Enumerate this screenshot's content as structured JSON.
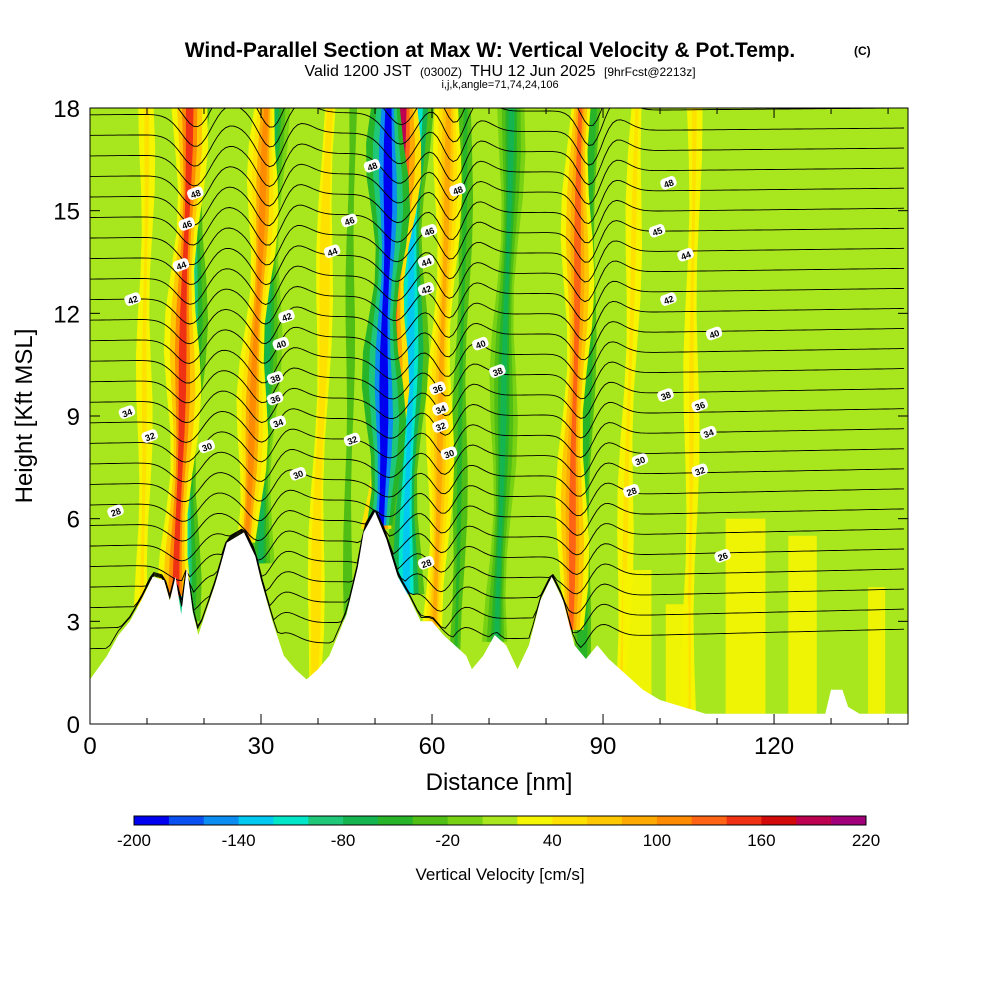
{
  "header": {
    "title": "Wind-Parallel Section at Max W: Vertical Velocity & Pot.Temp.",
    "title_mark": "(C)",
    "valid_prefix": "Valid 1200 JST",
    "valid_zulu": "(0300Z)",
    "valid_date": "THU 12 Jun 2025",
    "forecast": "[9hrFcst@2213z]",
    "indices": "i,j,k,angle=71,74,24,106"
  },
  "chart_data": {
    "type": "heatmap",
    "xlabel": "Distance [nm]",
    "ylabel": "Height [Kft MSL]",
    "xlim": [
      0,
      143.5
    ],
    "ylim": [
      0,
      18
    ],
    "x_ticks": [
      "0",
      "30",
      "60",
      "90",
      "120"
    ],
    "x_tick_values": [
      0,
      30,
      60,
      90,
      120
    ],
    "x_minor_step": 10,
    "y_ticks": [
      "0",
      "3",
      "6",
      "9",
      "12",
      "15",
      "18"
    ],
    "y_tick_values": [
      0,
      3,
      6,
      9,
      12,
      15,
      18
    ],
    "colorbar": {
      "label": "Vertical Velocity [cm/s]",
      "tick_labels": [
        "-200",
        "-140",
        "-80",
        "-20",
        "40",
        "100",
        "160",
        "220"
      ],
      "tick_values": [
        -200,
        -140,
        -80,
        -20,
        40,
        100,
        160,
        220
      ],
      "levels": [
        -200,
        -180,
        -160,
        -140,
        -120,
        -100,
        -80,
        -60,
        -40,
        -20,
        0,
        20,
        40,
        60,
        80,
        100,
        120,
        140,
        160,
        180,
        200,
        220
      ],
      "colors": [
        "#0000f0",
        "#0a50f0",
        "#0a8cf0",
        "#00c8f0",
        "#00e6c8",
        "#1ec878",
        "#14b450",
        "#28b428",
        "#50be14",
        "#78d214",
        "#a8e61e",
        "#f5f500",
        "#ffe100",
        "#ffc800",
        "#ffaa00",
        "#ff8c00",
        "#ff6414",
        "#f03214",
        "#d20a0a",
        "#be0050",
        "#a00078"
      ]
    },
    "terrain_kft": [
      [
        0,
        1.3
      ],
      [
        3,
        2
      ],
      [
        5,
        2.6
      ],
      [
        7,
        3
      ],
      [
        9,
        3.6
      ],
      [
        11,
        4.3
      ],
      [
        13,
        4.2
      ],
      [
        14,
        3.6
      ],
      [
        15,
        4.3
      ],
      [
        16,
        3.2
      ],
      [
        17,
        4.6
      ],
      [
        18,
        3.3
      ],
      [
        19,
        2.6
      ],
      [
        20,
        3.1
      ],
      [
        22,
        4.1
      ],
      [
        24,
        5.3
      ],
      [
        27,
        5.6
      ],
      [
        29,
        4.9
      ],
      [
        30,
        4.2
      ],
      [
        32,
        3
      ],
      [
        34,
        2
      ],
      [
        36,
        1.6
      ],
      [
        38,
        1.3
      ],
      [
        40,
        1.6
      ],
      [
        42,
        2
      ],
      [
        45,
        3.2
      ],
      [
        47,
        4.6
      ],
      [
        48,
        5.6
      ],
      [
        50,
        6.2
      ],
      [
        52,
        5.4
      ],
      [
        54,
        4.3
      ],
      [
        56,
        3.7
      ],
      [
        58,
        3
      ],
      [
        60,
        3
      ],
      [
        62,
        2.6
      ],
      [
        64,
        2.3
      ],
      [
        66,
        2
      ],
      [
        67,
        1.6
      ],
      [
        69,
        2
      ],
      [
        71,
        2.6
      ],
      [
        73,
        2.3
      ],
      [
        75,
        1.6
      ],
      [
        77,
        2.3
      ],
      [
        79,
        3.6
      ],
      [
        81,
        4.3
      ],
      [
        83,
        3.6
      ],
      [
        85,
        2.3
      ],
      [
        87,
        1.9
      ],
      [
        89,
        2.3
      ],
      [
        91,
        1.9
      ],
      [
        93,
        1.6
      ],
      [
        95,
        1.3
      ],
      [
        97,
        1
      ],
      [
        100,
        0.7
      ],
      [
        104,
        0.5
      ],
      [
        108,
        0.3
      ],
      [
        120,
        0.3
      ],
      [
        129,
        0.3
      ],
      [
        130,
        1
      ],
      [
        132,
        1
      ],
      [
        133,
        0.5
      ],
      [
        135,
        0.3
      ],
      [
        143.5,
        0.3
      ]
    ],
    "w_updrafts": [
      {
        "x_bottom": 14.5,
        "x_top": 17.5,
        "peak_cm_s": 150
      },
      {
        "x_bottom": 26,
        "x_top": 31,
        "peak_cm_s": 110
      },
      {
        "x_bottom": 49,
        "x_top": 55,
        "peak_cm_s": 180
      },
      {
        "x_bottom": 60,
        "x_top": 63,
        "peak_cm_s": 85
      },
      {
        "x_bottom": 84,
        "x_top": 86,
        "peak_cm_s": 120
      },
      {
        "x_bottom": 9,
        "x_top": 10,
        "peak_cm_s": 45
      },
      {
        "x_bottom": 39,
        "x_top": 42,
        "peak_cm_s": 55
      },
      {
        "x_bottom": 93,
        "x_top": 96,
        "peak_cm_s": 50
      },
      {
        "x_bottom": 105,
        "x_top": 106,
        "peak_cm_s": 40
      }
    ],
    "w_downdrafts": [
      {
        "x_bottom": 16,
        "x_top": 18.5,
        "peak_cm_s": -120
      },
      {
        "x_bottom": 29,
        "x_top": 32.5,
        "peak_cm_s": -80
      },
      {
        "x_bottom": 50.5,
        "x_top": 52.5,
        "peak_cm_s": -200
      },
      {
        "x_bottom": 55,
        "x_top": 57,
        "peak_cm_s": -140
      },
      {
        "x_bottom": 71,
        "x_top": 74,
        "peak_cm_s": -80
      },
      {
        "x_bottom": 86,
        "x_top": 88,
        "peak_cm_s": -60
      },
      {
        "x_bottom": 64,
        "x_top": 66,
        "peak_cm_s": -45
      },
      {
        "x_bottom": 45,
        "x_top": 46,
        "peak_cm_s": -35
      }
    ],
    "theta_labels": [
      {
        "text": "48",
        "x": 18.5,
        "y": 15.5
      },
      {
        "text": "46",
        "x": 17,
        "y": 14.6
      },
      {
        "text": "44",
        "x": 16,
        "y": 13.4
      },
      {
        "text": "42",
        "x": 7.5,
        "y": 12.4
      },
      {
        "text": "42",
        "x": 34.5,
        "y": 11.9
      },
      {
        "text": "40",
        "x": 33.5,
        "y": 11.1
      },
      {
        "text": "38",
        "x": 32.5,
        "y": 10.1
      },
      {
        "text": "36",
        "x": 32.5,
        "y": 9.5
      },
      {
        "text": "34",
        "x": 33,
        "y": 8.8
      },
      {
        "text": "34",
        "x": 6.5,
        "y": 9.1
      },
      {
        "text": "32",
        "x": 10.5,
        "y": 8.4
      },
      {
        "text": "30",
        "x": 20.5,
        "y": 8.1
      },
      {
        "text": "30",
        "x": 36.5,
        "y": 7.3
      },
      {
        "text": "28",
        "x": 4.5,
        "y": 6.2
      },
      {
        "text": "46",
        "x": 45.5,
        "y": 14.7
      },
      {
        "text": "44",
        "x": 42.5,
        "y": 13.8
      },
      {
        "text": "32",
        "x": 46,
        "y": 8.3
      },
      {
        "text": "48",
        "x": 49.5,
        "y": 16.3
      },
      {
        "text": "48",
        "x": 64.5,
        "y": 15.6
      },
      {
        "text": "46",
        "x": 59.5,
        "y": 14.4
      },
      {
        "text": "44",
        "x": 59,
        "y": 13.5
      },
      {
        "text": "42",
        "x": 59,
        "y": 12.7
      },
      {
        "text": "40",
        "x": 68.5,
        "y": 11.1
      },
      {
        "text": "38",
        "x": 71.5,
        "y": 10.3
      },
      {
        "text": "36",
        "x": 61,
        "y": 9.8
      },
      {
        "text": "34",
        "x": 61.5,
        "y": 9.2
      },
      {
        "text": "32",
        "x": 61.5,
        "y": 8.7
      },
      {
        "text": "30",
        "x": 63,
        "y": 7.9
      },
      {
        "text": "28",
        "x": 59,
        "y": 4.7
      },
      {
        "text": "48",
        "x": 101.5,
        "y": 15.8
      },
      {
        "text": "45",
        "x": 99.5,
        "y": 14.4
      },
      {
        "text": "44",
        "x": 104.5,
        "y": 13.7
      },
      {
        "text": "42",
        "x": 101.5,
        "y": 12.4
      },
      {
        "text": "40",
        "x": 109.5,
        "y": 11.4
      },
      {
        "text": "38",
        "x": 101,
        "y": 9.6
      },
      {
        "text": "36",
        "x": 107,
        "y": 9.3
      },
      {
        "text": "34",
        "x": 108.5,
        "y": 8.5
      },
      {
        "text": "32",
        "x": 107,
        "y": 7.4
      },
      {
        "text": "30",
        "x": 96.5,
        "y": 7.7
      },
      {
        "text": "28",
        "x": 95,
        "y": 6.8
      },
      {
        "text": "26",
        "x": 111,
        "y": 4.9
      }
    ]
  }
}
